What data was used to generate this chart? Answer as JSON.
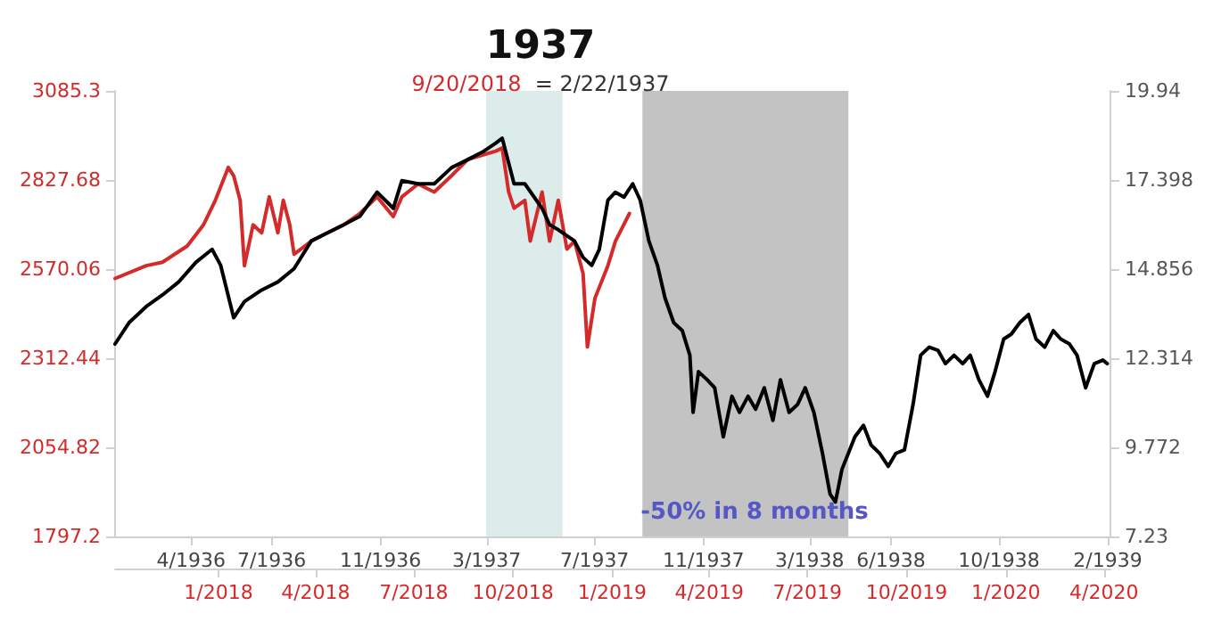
{
  "chart_data": {
    "type": "line",
    "title": "1937",
    "subtitle": "9/20/2018  = 2/22/1937",
    "xlim": [
      "2017-09-27",
      "2020-04-07"
    ],
    "xticks": [
      {
        "value": "2018-01-01",
        "label": "1/2018"
      },
      {
        "value": "2018-04-01",
        "label": "4/2018"
      },
      {
        "value": "2018-07-01",
        "label": "7/2018"
      },
      {
        "value": "2018-10-01",
        "label": "10/2018"
      },
      {
        "value": "2019-01-01",
        "label": "1/2019"
      },
      {
        "value": "2019-04-01",
        "label": "4/2019"
      },
      {
        "value": "2019-07-01",
        "label": "7/2019"
      },
      {
        "value": "2019-10-01",
        "label": "10/2019"
      },
      {
        "value": "2020-01-01",
        "label": "1/2020"
      },
      {
        "value": "2020-04-01",
        "label": "4/2020"
      }
    ],
    "x2lim": [
      "1936-01-06",
      "1939-02-04"
    ],
    "x2ticks": [
      {
        "value": "1936-04-01",
        "label": "4/1936"
      },
      {
        "value": "1936-07-01",
        "label": "7/1936"
      },
      {
        "value": "1936-11-01",
        "label": "11/1936"
      },
      {
        "value": "1937-03-01",
        "label": "3/1937"
      },
      {
        "value": "1937-07-01",
        "label": "7/1937"
      },
      {
        "value": "1937-11-01",
        "label": "11/1937"
      },
      {
        "value": "1938-03-01",
        "label": "3/1938"
      },
      {
        "value": "1938-06-01",
        "label": "6/1938"
      },
      {
        "value": "1938-10-01",
        "label": "10/1938"
      },
      {
        "value": "1939-02-01",
        "label": "2/1939"
      }
    ],
    "ylim": [
      1797.2,
      3085.3
    ],
    "yticks": [
      1797.2,
      2054.82,
      2312.44,
      2570.06,
      2827.68,
      3085.3
    ],
    "y2lim": [
      7.23,
      19.94
    ],
    "y2ticks": [
      7.23,
      9.772,
      12.314,
      14.856,
      17.398,
      19.94
    ],
    "bands": [
      {
        "axis": "x",
        "from": "2018-09-06",
        "to": "2018-11-16",
        "label": null,
        "color": "#dcecea"
      },
      {
        "axis": "x",
        "from": "2019-01-29",
        "to": "2019-08-08",
        "label": "-50% in 8 months",
        "color": "#c3c3c3"
      }
    ],
    "series": [
      {
        "color": "#d42a2a",
        "x": [
          "2017-09-27",
          "2017-10-26",
          "2017-11-10",
          "2017-12-03",
          "2017-12-18",
          "2017-12-29",
          "2018-01-10",
          "2018-01-15",
          "2018-01-21",
          "2018-01-25",
          "2018-02-02",
          "2018-02-10",
          "2018-02-17",
          "2018-02-25",
          "2018-03-02",
          "2018-03-08",
          "2018-03-12",
          "2018-03-28",
          "2018-04-12",
          "2018-04-27",
          "2018-05-12",
          "2018-05-28",
          "2018-06-12",
          "2018-06-20",
          "2018-07-05",
          "2018-07-20",
          "2018-08-05",
          "2018-08-20",
          "2018-09-04",
          "2018-09-15",
          "2018-09-21",
          "2018-09-27",
          "2018-10-02",
          "2018-10-12",
          "2018-10-17",
          "2018-10-28",
          "2018-11-04",
          "2018-11-12",
          "2018-11-20",
          "2018-11-27",
          "2018-12-05",
          "2018-12-09",
          "2018-12-16",
          "2018-12-28",
          "2019-01-04",
          "2019-01-17"
        ],
        "values": [
          2543,
          2580,
          2590,
          2637,
          2698,
          2769,
          2864,
          2840,
          2769,
          2580,
          2698,
          2675,
          2779,
          2675,
          2769,
          2698,
          2613,
          2651,
          2675,
          2698,
          2731,
          2779,
          2722,
          2779,
          2816,
          2793,
          2840,
          2887,
          2901,
          2911,
          2920,
          2793,
          2746,
          2769,
          2651,
          2793,
          2651,
          2769,
          2628,
          2651,
          2557,
          2345,
          2486,
          2580,
          2651,
          2731
        ]
      },
      {
        "color": "#000000",
        "axis": "y2",
        "x": [
          "2017-09-27",
          "2017-10-10",
          "2017-10-26",
          "2017-11-10",
          "2017-11-25",
          "2017-12-11",
          "2017-12-26",
          "2018-01-03",
          "2018-01-15",
          "2018-01-25",
          "2018-02-10",
          "2018-02-25",
          "2018-03-12",
          "2018-03-28",
          "2018-04-12",
          "2018-04-27",
          "2018-05-12",
          "2018-05-28",
          "2018-06-12",
          "2018-06-20",
          "2018-07-05",
          "2018-07-20",
          "2018-08-05",
          "2018-08-20",
          "2018-09-04",
          "2018-09-15",
          "2018-09-21",
          "2018-10-02",
          "2018-10-12",
          "2018-10-28",
          "2018-11-04",
          "2018-11-12",
          "2018-11-27",
          "2018-12-05",
          "2018-12-13",
          "2018-12-20",
          "2018-12-28",
          "2019-01-04",
          "2019-01-12",
          "2019-01-20",
          "2019-01-27",
          "2019-02-04",
          "2019-02-12",
          "2019-02-19",
          "2019-02-27",
          "2019-03-07",
          "2019-03-14",
          "2019-03-17",
          "2019-03-22",
          "2019-03-30",
          "2019-04-06",
          "2019-04-14",
          "2019-04-22",
          "2019-04-29",
          "2019-05-07",
          "2019-05-14",
          "2019-05-22",
          "2019-05-30",
          "2019-06-06",
          "2019-06-14",
          "2019-06-22",
          "2019-06-29",
          "2019-07-07",
          "2019-07-15",
          "2019-07-22",
          "2019-07-27",
          "2019-08-02",
          "2019-08-14",
          "2019-08-22",
          "2019-08-29",
          "2019-09-06",
          "2019-09-14",
          "2019-09-21",
          "2019-09-29",
          "2019-10-07",
          "2019-10-14",
          "2019-10-22",
          "2019-10-30",
          "2019-11-06",
          "2019-11-14",
          "2019-11-22",
          "2019-11-29",
          "2019-12-07",
          "2019-12-15",
          "2019-12-22",
          "2019-12-30",
          "2020-01-06",
          "2020-01-14",
          "2020-01-22",
          "2020-01-29",
          "2020-02-06",
          "2020-02-14",
          "2020-02-21",
          "2020-02-29",
          "2020-03-07",
          "2020-03-15",
          "2020-03-23",
          "2020-03-31",
          "2020-04-04"
        ],
        "values": [
          12.72,
          13.33,
          13.79,
          14.12,
          14.49,
          15.05,
          15.42,
          14.96,
          13.47,
          13.93,
          14.26,
          14.49,
          14.87,
          15.66,
          15.89,
          16.12,
          16.36,
          17.05,
          16.59,
          17.38,
          17.29,
          17.29,
          17.75,
          17.98,
          18.22,
          18.45,
          18.59,
          17.29,
          17.29,
          16.59,
          16.12,
          15.98,
          15.66,
          15.19,
          14.96,
          15.42,
          16.82,
          17.05,
          16.91,
          17.29,
          16.82,
          15.66,
          14.96,
          14.03,
          13.33,
          13.1,
          12.4,
          10.77,
          11.93,
          11.7,
          11.47,
          10.07,
          11.23,
          10.77,
          11.23,
          10.86,
          11.47,
          10.54,
          11.7,
          10.77,
          11.0,
          11.47,
          10.77,
          9.6,
          8.44,
          8.21,
          9.14,
          10.07,
          10.4,
          9.84,
          9.6,
          9.23,
          9.6,
          9.7,
          11.0,
          12.4,
          12.63,
          12.54,
          12.16,
          12.4,
          12.16,
          12.4,
          11.7,
          11.23,
          11.93,
          12.86,
          13.0,
          13.33,
          13.56,
          12.86,
          12.63,
          13.1,
          12.86,
          12.72,
          12.4,
          11.47,
          12.16,
          12.26,
          12.16
        ]
      }
    ]
  }
}
